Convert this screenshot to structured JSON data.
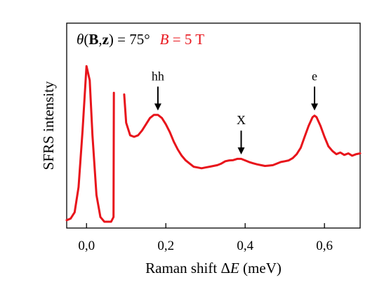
{
  "chart_data": {
    "type": "line",
    "title_parts": {
      "theta": "θ",
      "open": "(",
      "B": "B",
      "comma": ",",
      "z": "z",
      "rest": ") = 75°",
      "field_B": "B",
      "field_rest": " = 5 T"
    },
    "xlabel_prefix": "Raman shift Δ",
    "xlabel_var": "E",
    "xlabel_unit": " (meV)",
    "ylabel": "SFRS intensity",
    "xlim": [
      -0.05,
      0.69
    ],
    "ylim": [
      0,
      1
    ],
    "xticks": [
      0.0,
      0.2,
      0.4,
      0.6
    ],
    "xtick_labels": [
      "0,0",
      "0,2",
      "0,4",
      "0,6"
    ],
    "series": [
      {
        "color": "#e8141b",
        "segments": [
          [
            [
              -0.05,
              0.01
            ],
            [
              -0.04,
              0.02
            ],
            [
              -0.03,
              0.06
            ],
            [
              -0.02,
              0.22
            ],
            [
              -0.01,
              0.58
            ],
            [
              0.0,
              0.99
            ],
            [
              0.008,
              0.9
            ],
            [
              0.015,
              0.55
            ],
            [
              0.025,
              0.17
            ],
            [
              0.035,
              0.03
            ],
            [
              0.045,
              0.0
            ],
            [
              0.062,
              0.0
            ],
            [
              0.068,
              0.03
            ],
            [
              0.069,
              0.82
            ]
          ],
          [
            [
              0.095,
              0.81
            ],
            [
              0.1,
              0.63
            ],
            [
              0.11,
              0.55
            ],
            [
              0.12,
              0.54
            ],
            [
              0.13,
              0.55
            ],
            [
              0.14,
              0.58
            ],
            [
              0.15,
              0.62
            ],
            [
              0.16,
              0.66
            ],
            [
              0.17,
              0.68
            ],
            [
              0.18,
              0.68
            ],
            [
              0.19,
              0.66
            ],
            [
              0.2,
              0.62
            ],
            [
              0.21,
              0.57
            ],
            [
              0.22,
              0.51
            ],
            [
              0.23,
              0.46
            ],
            [
              0.24,
              0.42
            ],
            [
              0.25,
              0.39
            ],
            [
              0.26,
              0.37
            ],
            [
              0.27,
              0.35
            ],
            [
              0.28,
              0.345
            ],
            [
              0.29,
              0.34
            ],
            [
              0.3,
              0.345
            ],
            [
              0.31,
              0.35
            ],
            [
              0.32,
              0.355
            ],
            [
              0.33,
              0.36
            ],
            [
              0.34,
              0.37
            ],
            [
              0.35,
              0.385
            ],
            [
              0.36,
              0.39
            ],
            [
              0.37,
              0.392
            ],
            [
              0.38,
              0.4
            ],
            [
              0.39,
              0.4
            ],
            [
              0.4,
              0.39
            ],
            [
              0.41,
              0.38
            ],
            [
              0.42,
              0.372
            ],
            [
              0.43,
              0.365
            ],
            [
              0.44,
              0.36
            ],
            [
              0.45,
              0.355
            ],
            [
              0.46,
              0.357
            ],
            [
              0.47,
              0.36
            ],
            [
              0.48,
              0.37
            ],
            [
              0.49,
              0.38
            ],
            [
              0.5,
              0.385
            ],
            [
              0.51,
              0.39
            ],
            [
              0.52,
              0.405
            ],
            [
              0.53,
              0.43
            ],
            [
              0.54,
              0.47
            ],
            [
              0.55,
              0.54
            ],
            [
              0.56,
              0.61
            ],
            [
              0.57,
              0.665
            ],
            [
              0.575,
              0.675
            ],
            [
              0.58,
              0.665
            ],
            [
              0.59,
              0.61
            ],
            [
              0.6,
              0.54
            ],
            [
              0.61,
              0.48
            ],
            [
              0.62,
              0.45
            ],
            [
              0.63,
              0.43
            ],
            [
              0.64,
              0.44
            ],
            [
              0.65,
              0.425
            ],
            [
              0.66,
              0.435
            ],
            [
              0.67,
              0.42
            ],
            [
              0.68,
              0.43
            ],
            [
              0.69,
              0.435
            ]
          ]
        ]
      }
    ],
    "annotations": [
      {
        "label": "hh",
        "x": 0.18,
        "y": 0.69
      },
      {
        "label": "X",
        "x": 0.39,
        "y": 0.41
      },
      {
        "label": "e",
        "x": 0.575,
        "y": 0.69
      }
    ],
    "grid": false,
    "legend": "none"
  }
}
